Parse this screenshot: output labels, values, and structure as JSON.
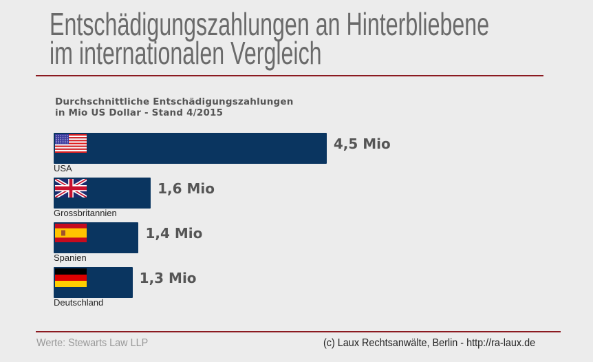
{
  "title_line1": "Entschädigungszahlungen an Hinterbliebene",
  "title_line2": "im internationalen Vergleich",
  "chart_data": {
    "type": "bar",
    "orientation": "horizontal",
    "subtitle_line1": "Durchschnittliche Entschädigungszahlungen",
    "subtitle_line2": "in Mio US Dollar - Stand 4/2015",
    "categories": [
      "USA",
      "Grossbritannien",
      "Spanien",
      "Deutschland"
    ],
    "values": [
      4.5,
      1.6,
      1.4,
      1.3
    ],
    "data_labels": [
      "4,5 Mio",
      "1,6 Mio",
      "1,4 Mio",
      "1,3 Mio"
    ],
    "flags": [
      "us-flag-icon",
      "uk-flag-icon",
      "spain-flag-icon",
      "germany-flag-icon"
    ],
    "bar_color": "#0a3560",
    "grid": false
  },
  "footer": {
    "source": "Werte: Stewarts Law LLP",
    "copyright": "(c) Laux Rechtsanwälte, Berlin - http://ra-laux.de"
  },
  "accent_color": "#8b1a20"
}
